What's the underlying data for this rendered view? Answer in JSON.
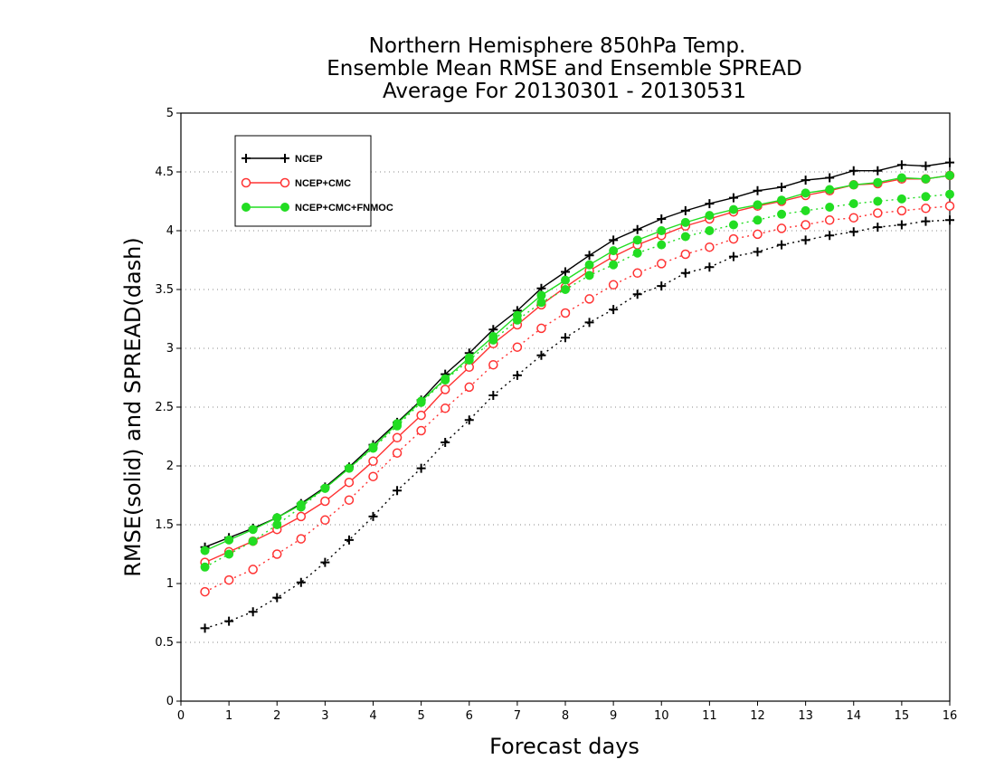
{
  "chart_data": {
    "type": "line",
    "title_lines": [
      "Northern Hemisphere 850hPa Temp.",
      "Ensemble Mean RMSE and Ensemble SPREAD",
      "Average For 20130301 - 20130531"
    ],
    "xlabel": "Forecast days",
    "ylabel": "RMSE(solid) and SPREAD(dash)",
    "xlim": [
      0,
      16
    ],
    "ylim": [
      0,
      5
    ],
    "xticks": [
      "0",
      "1",
      "2",
      "3",
      "4",
      "5",
      "6",
      "7",
      "8",
      "9",
      "10",
      "11",
      "12",
      "13",
      "14",
      "15",
      "16"
    ],
    "yticks": [
      "0",
      "0.5",
      "1",
      "1.5",
      "2",
      "2.5",
      "3",
      "3.5",
      "4",
      "4.5",
      "5"
    ],
    "grid": "horizontal dotted",
    "legend_position": "top-left",
    "x": [
      0.5,
      1,
      1.5,
      2,
      2.5,
      3,
      3.5,
      4,
      4.5,
      5,
      5.5,
      6,
      6.5,
      7,
      7.5,
      8,
      8.5,
      9,
      9.5,
      10,
      10.5,
      11,
      11.5,
      12,
      12.5,
      13,
      13.5,
      14,
      14.5,
      15,
      15.5,
      16
    ],
    "series": [
      {
        "name": "NCEP",
        "color": "#000000",
        "marker": "plus",
        "rmse": [
          1.31,
          1.39,
          1.47,
          1.56,
          1.68,
          1.82,
          1.99,
          2.18,
          2.37,
          2.56,
          2.78,
          2.96,
          3.16,
          3.32,
          3.51,
          3.65,
          3.79,
          3.92,
          4.01,
          4.1,
          4.17,
          4.23,
          4.28,
          4.34,
          4.37,
          4.43,
          4.45,
          4.51,
          4.51,
          4.56,
          4.55,
          4.58
        ],
        "spread": [
          0.62,
          0.68,
          0.76,
          0.88,
          1.01,
          1.18,
          1.37,
          1.57,
          1.79,
          1.98,
          2.2,
          2.39,
          2.6,
          2.77,
          2.94,
          3.09,
          3.22,
          3.33,
          3.46,
          3.53,
          3.64,
          3.69,
          3.78,
          3.82,
          3.88,
          3.92,
          3.96,
          3.99,
          4.03,
          4.05,
          4.08,
          4.09
        ]
      },
      {
        "name": "NCEP+CMC",
        "color": "#ff3333",
        "marker": "circle",
        "rmse": [
          1.18,
          1.27,
          1.36,
          1.46,
          1.57,
          1.7,
          1.86,
          2.04,
          2.24,
          2.43,
          2.65,
          2.84,
          3.04,
          3.2,
          3.37,
          3.52,
          3.66,
          3.78,
          3.88,
          3.96,
          4.04,
          4.1,
          4.16,
          4.21,
          4.25,
          4.3,
          4.34,
          4.39,
          4.4,
          4.44,
          4.44,
          4.47
        ],
        "spread": [
          0.93,
          1.03,
          1.12,
          1.25,
          1.38,
          1.54,
          1.71,
          1.91,
          2.11,
          2.3,
          2.49,
          2.67,
          2.86,
          3.01,
          3.17,
          3.3,
          3.42,
          3.54,
          3.64,
          3.72,
          3.8,
          3.86,
          3.93,
          3.97,
          4.02,
          4.05,
          4.09,
          4.11,
          4.15,
          4.17,
          4.19,
          4.21
        ]
      },
      {
        "name": "NCEP+CMC+FNMOC",
        "color": "#22dd22",
        "marker": "filled-circle",
        "rmse": [
          1.28,
          1.37,
          1.46,
          1.56,
          1.67,
          1.81,
          1.98,
          2.16,
          2.36,
          2.55,
          2.74,
          2.92,
          3.1,
          3.28,
          3.45,
          3.58,
          3.71,
          3.83,
          3.92,
          4.0,
          4.07,
          4.13,
          4.18,
          4.22,
          4.26,
          4.32,
          4.35,
          4.39,
          4.41,
          4.45,
          4.44,
          4.47
        ],
        "spread": [
          1.14,
          1.25,
          1.36,
          1.5,
          1.65,
          1.81,
          1.98,
          2.15,
          2.34,
          2.54,
          2.73,
          2.9,
          3.07,
          3.24,
          3.39,
          3.5,
          3.62,
          3.71,
          3.81,
          3.88,
          3.95,
          4.0,
          4.05,
          4.09,
          4.14,
          4.17,
          4.2,
          4.23,
          4.25,
          4.27,
          4.29,
          4.31
        ]
      }
    ]
  }
}
